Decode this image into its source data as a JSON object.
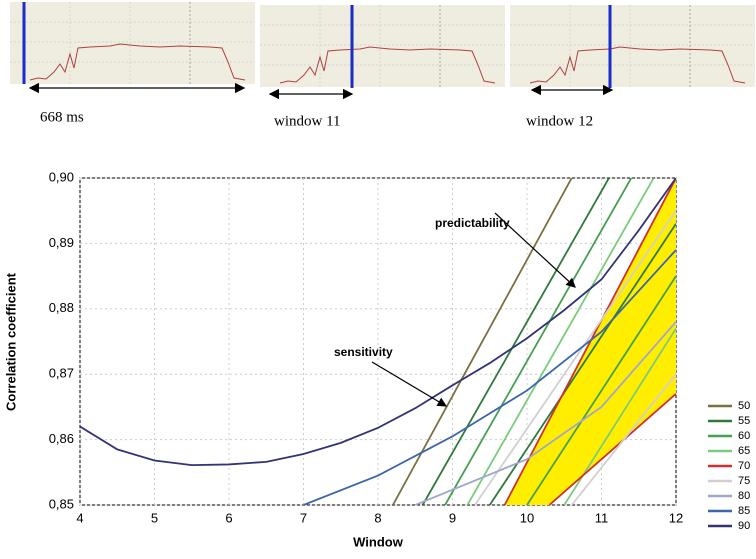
{
  "panels": [
    {
      "label": "668 ms"
    },
    {
      "label": "window 11"
    },
    {
      "label": "window 12"
    }
  ],
  "chart_data": {
    "type": "line",
    "xlabel": "Window",
    "ylabel": "Correlation coefficient",
    "xlim": [
      4,
      12
    ],
    "ylim": [
      0.85,
      0.9
    ],
    "xticks": [
      4,
      5,
      6,
      7,
      8,
      9,
      10,
      11,
      12
    ],
    "yticks": [
      {
        "value": 0.85,
        "label": "0,85"
      },
      {
        "value": 0.86,
        "label": "0,86"
      },
      {
        "value": 0.87,
        "label": "0,87"
      },
      {
        "value": 0.88,
        "label": "0,88"
      },
      {
        "value": 0.89,
        "label": "0,89"
      },
      {
        "value": 0.9,
        "label": "0,90"
      }
    ],
    "grid": true,
    "annotations": [
      "predictability",
      "sensitivity"
    ],
    "series": [
      {
        "name": "50",
        "color": "#7a7040",
        "x": [
          8.2,
          10.6
        ],
        "values": [
          0.85,
          0.9
        ]
      },
      {
        "name": "55",
        "color": "#2f7a3a",
        "x": [
          8.6,
          11.1,
          null,
          9.5,
          12
        ],
        "values": [
          0.85,
          0.9,
          null,
          0.85,
          0.893
        ]
      },
      {
        "name": "60",
        "color": "#46a050",
        "x": [
          8.9,
          11.4,
          null,
          10.0,
          12
        ],
        "values": [
          0.85,
          0.9,
          null,
          0.85,
          0.885
        ]
      },
      {
        "name": "65",
        "color": "#7acc7a",
        "x": [
          9.2,
          11.7,
          null,
          10.5,
          12
        ],
        "values": [
          0.85,
          0.9,
          null,
          0.85,
          0.877
        ]
      },
      {
        "name": "70",
        "color": "#d03030",
        "x": [
          9.7,
          12,
          null,
          10.3,
          12
        ],
        "values": [
          0.85,
          0.9,
          null,
          0.85,
          0.867
        ]
      },
      {
        "name": "75",
        "color": "#d0d0d0",
        "x": [
          9.3,
          12,
          null,
          10.6,
          12
        ],
        "values": [
          0.85,
          0.895,
          null,
          0.85,
          0.87
        ]
      },
      {
        "name": "80",
        "color": "#a0a8cc",
        "x": [
          8.5,
          10,
          11,
          12
        ],
        "values": [
          0.85,
          0.857,
          0.865,
          0.878
        ]
      },
      {
        "name": "85",
        "color": "#3a66aa",
        "x": [
          7,
          8,
          9,
          10,
          11,
          12
        ],
        "values": [
          0.85,
          0.8545,
          0.8605,
          0.8675,
          0.8765,
          0.889
        ]
      },
      {
        "name": "90",
        "color": "#333377",
        "x": [
          4,
          4.5,
          5,
          5.5,
          6,
          6.5,
          7,
          7.5,
          8,
          8.5,
          9,
          9.5,
          10,
          10.5,
          11,
          11.5,
          12
        ],
        "values": [
          0.862,
          0.8585,
          0.8568,
          0.8561,
          0.8562,
          0.8566,
          0.8578,
          0.8595,
          0.8618,
          0.8648,
          0.8683,
          0.8717,
          0.8755,
          0.8798,
          0.8845,
          0.892,
          0.9
        ]
      }
    ]
  }
}
